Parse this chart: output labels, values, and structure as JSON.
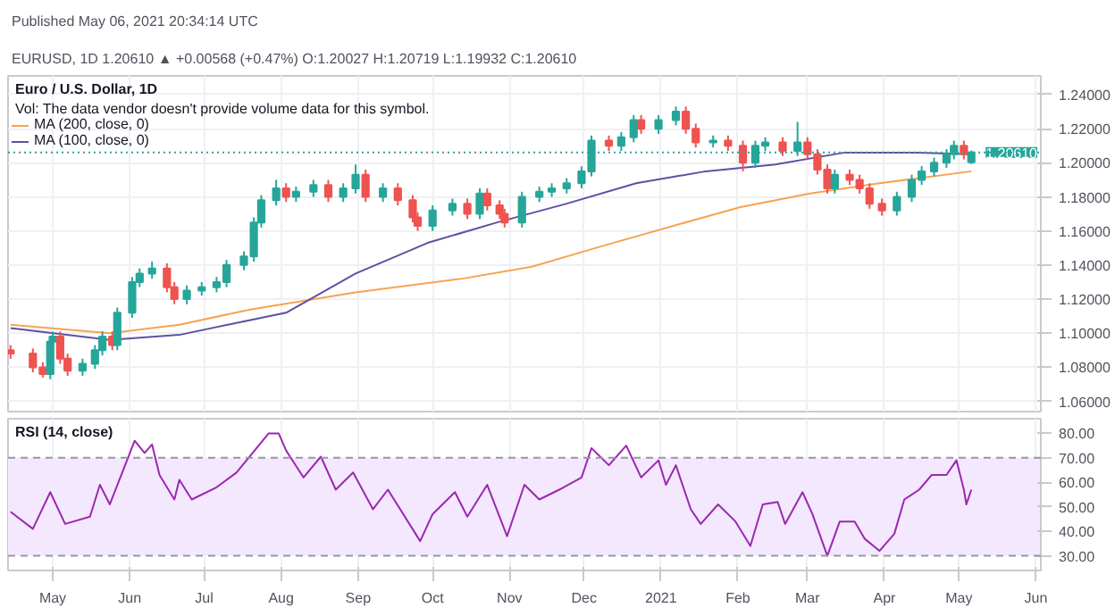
{
  "chart_data": [
    {
      "type": "candlestick",
      "title": "Euro / U.S. Dollar, 1D",
      "subtitle": "Vol: The data vendor doesn't provide volume data for this symbol.",
      "annotations": [
        "Published May 06, 2021 20:34:14 UTC",
        "EURUSD, 1D 1.20610 ▲ +0.00568 (+0.47%) O:1.20027 H:1.20719 L:1.19932 C:1.20610"
      ],
      "x": [
        "2020-04-14",
        "2020-04-23",
        "2020-04-27",
        "2020-04-30",
        "2020-05-01",
        "2020-05-04",
        "2020-05-07",
        "2020-05-13",
        "2020-05-18",
        "2020-05-21",
        "2020-05-25",
        "2020-05-27",
        "2020-06-02",
        "2020-06-05",
        "2020-06-10",
        "2020-06-16",
        "2020-06-19",
        "2020-06-24",
        "2020-06-30",
        "2020-07-06",
        "2020-07-10",
        "2020-07-17",
        "2020-07-21",
        "2020-07-24",
        "2020-07-30",
        "2020-08-03",
        "2020-08-07",
        "2020-08-14",
        "2020-08-20",
        "2020-08-26",
        "2020-08-31",
        "2020-09-04",
        "2020-09-11",
        "2020-09-17",
        "2020-09-23",
        "2020-09-25",
        "2020-10-01",
        "2020-10-09",
        "2020-10-15",
        "2020-10-20",
        "2020-10-23",
        "2020-10-28",
        "2020-10-30",
        "2020-11-06",
        "2020-11-13",
        "2020-11-18",
        "2020-11-24",
        "2020-11-30",
        "2020-12-04",
        "2020-12-11",
        "2020-12-16",
        "2020-12-21",
        "2020-12-24",
        "2020-12-31",
        "2021-01-07",
        "2021-01-11",
        "2021-01-15",
        "2021-01-22",
        "2021-01-28",
        "2021-02-03",
        "2021-02-08",
        "2021-02-12",
        "2021-02-19",
        "2021-02-25",
        "2021-03-01",
        "2021-03-05",
        "2021-03-09",
        "2021-03-12",
        "2021-03-18",
        "2021-03-22",
        "2021-03-26",
        "2021-03-31",
        "2021-04-06",
        "2021-04-12",
        "2021-04-16",
        "2021-04-21",
        "2021-04-26",
        "2021-04-29",
        "2021-05-03",
        "2021-05-06"
      ],
      "ohlc": [
        [
          1.09,
          1.093,
          1.085,
          1.088
        ],
        [
          1.088,
          1.091,
          1.077,
          1.08
        ],
        [
          1.08,
          1.083,
          1.074,
          1.076
        ],
        [
          1.076,
          1.098,
          1.073,
          1.095
        ],
        [
          1.095,
          1.101,
          1.092,
          1.098
        ],
        [
          1.098,
          1.101,
          1.082,
          1.085
        ],
        [
          1.085,
          1.088,
          1.075,
          1.078
        ],
        [
          1.078,
          1.085,
          1.075,
          1.082
        ],
        [
          1.082,
          1.093,
          1.079,
          1.09
        ],
        [
          1.09,
          1.101,
          1.087,
          1.098
        ],
        [
          1.098,
          1.101,
          1.09,
          1.093
        ],
        [
          1.093,
          1.115,
          1.09,
          1.112
        ],
        [
          1.112,
          1.133,
          1.109,
          1.13
        ],
        [
          1.13,
          1.138,
          1.127,
          1.135
        ],
        [
          1.135,
          1.142,
          1.132,
          1.138
        ],
        [
          1.138,
          1.141,
          1.124,
          1.127
        ],
        [
          1.127,
          1.13,
          1.117,
          1.12
        ],
        [
          1.12,
          1.128,
          1.117,
          1.125
        ],
        [
          1.125,
          1.13,
          1.122,
          1.127
        ],
        [
          1.127,
          1.133,
          1.124,
          1.13
        ],
        [
          1.13,
          1.143,
          1.127,
          1.14
        ],
        [
          1.14,
          1.148,
          1.137,
          1.145
        ],
        [
          1.145,
          1.168,
          1.142,
          1.165
        ],
        [
          1.165,
          1.181,
          1.162,
          1.178
        ],
        [
          1.178,
          1.19,
          1.175,
          1.185
        ],
        [
          1.185,
          1.188,
          1.177,
          1.18
        ],
        [
          1.18,
          1.186,
          1.177,
          1.183
        ],
        [
          1.183,
          1.19,
          1.18,
          1.187
        ],
        [
          1.187,
          1.19,
          1.177,
          1.18
        ],
        [
          1.18,
          1.188,
          1.177,
          1.185
        ],
        [
          1.185,
          1.199,
          1.182,
          1.193
        ],
        [
          1.193,
          1.196,
          1.177,
          1.18
        ],
        [
          1.18,
          1.188,
          1.177,
          1.185
        ],
        [
          1.185,
          1.188,
          1.175,
          1.178
        ],
        [
          1.178,
          1.181,
          1.165,
          1.168
        ],
        [
          1.168,
          1.171,
          1.16,
          1.163
        ],
        [
          1.163,
          1.175,
          1.16,
          1.172
        ],
        [
          1.172,
          1.179,
          1.169,
          1.176
        ],
        [
          1.176,
          1.179,
          1.167,
          1.17
        ],
        [
          1.17,
          1.185,
          1.167,
          1.182
        ],
        [
          1.182,
          1.185,
          1.172,
          1.175
        ],
        [
          1.175,
          1.178,
          1.167,
          1.17
        ],
        [
          1.17,
          1.173,
          1.162,
          1.165
        ],
        [
          1.165,
          1.183,
          1.162,
          1.18
        ],
        [
          1.18,
          1.186,
          1.177,
          1.183
        ],
        [
          1.183,
          1.188,
          1.18,
          1.185
        ],
        [
          1.185,
          1.191,
          1.182,
          1.188
        ],
        [
          1.188,
          1.198,
          1.185,
          1.195
        ],
        [
          1.195,
          1.216,
          1.192,
          1.213
        ],
        [
          1.213,
          1.216,
          1.207,
          1.21
        ],
        [
          1.21,
          1.218,
          1.207,
          1.215
        ],
        [
          1.215,
          1.228,
          1.212,
          1.225
        ],
        [
          1.225,
          1.228,
          1.217,
          1.22
        ],
        [
          1.22,
          1.228,
          1.217,
          1.225
        ],
        [
          1.225,
          1.233,
          1.222,
          1.23
        ],
        [
          1.23,
          1.233,
          1.217,
          1.22
        ],
        [
          1.22,
          1.223,
          1.209,
          1.212
        ],
        [
          1.212,
          1.216,
          1.209,
          1.213
        ],
        [
          1.213,
          1.216,
          1.207,
          1.21
        ],
        [
          1.21,
          1.213,
          1.195,
          1.2
        ],
        [
          1.2,
          1.213,
          1.197,
          1.21
        ],
        [
          1.21,
          1.215,
          1.207,
          1.212
        ],
        [
          1.212,
          1.215,
          1.204,
          1.207
        ],
        [
          1.207,
          1.224,
          1.204,
          1.212
        ],
        [
          1.212,
          1.215,
          1.202,
          1.205
        ],
        [
          1.205,
          1.208,
          1.193,
          1.196
        ],
        [
          1.196,
          1.199,
          1.182,
          1.185
        ],
        [
          1.185,
          1.196,
          1.182,
          1.193
        ],
        [
          1.193,
          1.196,
          1.187,
          1.19
        ],
        [
          1.19,
          1.193,
          1.182,
          1.185
        ],
        [
          1.185,
          1.188,
          1.173,
          1.176
        ],
        [
          1.176,
          1.179,
          1.169,
          1.172
        ],
        [
          1.172,
          1.183,
          1.169,
          1.18
        ],
        [
          1.18,
          1.193,
          1.177,
          1.19
        ],
        [
          1.19,
          1.198,
          1.187,
          1.195
        ],
        [
          1.195,
          1.203,
          1.192,
          1.2
        ],
        [
          1.2,
          1.208,
          1.197,
          1.205
        ],
        [
          1.205,
          1.213,
          1.202,
          1.21
        ],
        [
          1.21,
          1.213,
          1.202,
          1.205
        ],
        [
          1.20027,
          1.20719,
          1.19932,
          1.2061
        ]
      ],
      "colors": [
        "#ef5350",
        "#ef5350",
        "#ef5350",
        "#26a69a",
        "#26a69a",
        "#ef5350",
        "#ef5350",
        "#26a69a",
        "#26a69a",
        "#26a69a",
        "#ef5350",
        "#26a69a",
        "#26a69a",
        "#26a69a",
        "#26a69a",
        "#ef5350",
        "#ef5350",
        "#26a69a",
        "#26a69a",
        "#26a69a",
        "#26a69a",
        "#26a69a",
        "#26a69a",
        "#26a69a",
        "#26a69a",
        "#ef5350",
        "#26a69a",
        "#26a69a",
        "#ef5350",
        "#26a69a",
        "#26a69a",
        "#ef5350",
        "#26a69a",
        "#ef5350",
        "#ef5350",
        "#ef5350",
        "#26a69a",
        "#26a69a",
        "#ef5350",
        "#26a69a",
        "#ef5350",
        "#ef5350",
        "#ef5350",
        "#26a69a",
        "#26a69a",
        "#26a69a",
        "#26a69a",
        "#26a69a",
        "#26a69a",
        "#ef5350",
        "#26a69a",
        "#26a69a",
        "#ef5350",
        "#26a69a",
        "#26a69a",
        "#ef5350",
        "#ef5350",
        "#26a69a",
        "#ef5350",
        "#ef5350",
        "#26a69a",
        "#26a69a",
        "#ef5350",
        "#26a69a",
        "#ef5350",
        "#ef5350",
        "#ef5350",
        "#26a69a",
        "#ef5350",
        "#ef5350",
        "#ef5350",
        "#ef5350",
        "#26a69a",
        "#26a69a",
        "#26a69a",
        "#26a69a",
        "#26a69a",
        "#26a69a",
        "#ef5350",
        "#26a69a"
      ],
      "series": [
        {
          "name": "MA (200, close, 0)",
          "type": "line",
          "color": "#f7a350",
          "x": [
            "2020-04-14",
            "2020-05-24",
            "2020-06-21",
            "2020-07-20",
            "2020-08-31",
            "2020-10-13",
            "2020-11-10",
            "2020-12-08",
            "2021-01-06",
            "2021-02-02",
            "2021-03-02",
            "2021-03-30",
            "2021-05-06"
          ],
          "values": [
            1.105,
            1.1,
            1.105,
            1.114,
            1.124,
            1.132,
            1.139,
            1.151,
            1.163,
            1.174,
            1.182,
            1.188,
            1.195
          ]
        },
        {
          "name": "MA (100, close, 0)",
          "type": "line",
          "color": "#5e4fa2",
          "x": [
            "2020-04-14",
            "2020-05-24",
            "2020-06-21",
            "2020-07-14",
            "2020-08-03",
            "2020-08-31",
            "2020-09-29",
            "2020-10-27",
            "2020-11-24",
            "2020-12-22",
            "2021-01-19",
            "2021-02-16",
            "2021-03-16",
            "2021-04-14",
            "2021-05-06"
          ],
          "values": [
            1.103,
            1.096,
            1.099,
            1.106,
            1.112,
            1.135,
            1.153,
            1.165,
            1.176,
            1.188,
            1.195,
            1.199,
            1.206,
            1.206,
            1.205
          ]
        }
      ],
      "ref_lines": [
        {
          "axis": "y",
          "value": 1.2061,
          "label": "1.20610",
          "color": "#26a69a",
          "line_style": "dotted"
        }
      ],
      "xlim": [
        "2020-04-13",
        "2021-06-03"
      ],
      "xticks": [
        {
          "value": "2020-05-01",
          "label": null
        },
        {
          "value": "2020-06-01",
          "label": null
        },
        {
          "value": "2020-07-01",
          "label": null
        },
        {
          "value": "2020-08-01",
          "label": null
        },
        {
          "value": "2020-09-01",
          "label": null
        },
        {
          "value": "2020-10-01",
          "label": null
        },
        {
          "value": "2020-11-01",
          "label": null
        },
        {
          "value": "2020-12-01",
          "label": null
        },
        {
          "value": "2021-01-01",
          "label": null
        },
        {
          "value": "2021-02-01",
          "label": null
        },
        {
          "value": "2021-03-01",
          "label": null
        },
        {
          "value": "2021-04-01",
          "label": null
        },
        {
          "value": "2021-05-01",
          "label": null
        },
        {
          "value": "2021-06-01",
          "label": null
        }
      ],
      "ylim": [
        1.054,
        1.251
      ],
      "yticks": [
        {
          "value": 1.06,
          "label": "1.06000"
        },
        {
          "value": 1.08,
          "label": "1.08000"
        },
        {
          "value": 1.1,
          "label": "1.10000"
        },
        {
          "value": 1.12,
          "label": "1.12000"
        },
        {
          "value": 1.14,
          "label": "1.14000"
        },
        {
          "value": 1.16,
          "label": "1.16000"
        },
        {
          "value": 1.18,
          "label": "1.18000"
        },
        {
          "value": 1.2,
          "label": "1.20000"
        },
        {
          "value": 1.22,
          "label": "1.22000"
        },
        {
          "value": 1.24,
          "label": "1.24000"
        }
      ],
      "grid": true,
      "legend": "top left",
      "tick_labels": "y"
    },
    {
      "type": "line",
      "title": "RSI (14, close)",
      "series": [
        {
          "color": "#9c27b0",
          "x": [
            "2020-04-14",
            "2020-04-23",
            "2020-04-30",
            "2020-05-06",
            "2020-05-16",
            "2020-05-20",
            "2020-05-24",
            "2020-06-03",
            "2020-06-07",
            "2020-06-10",
            "2020-06-13",
            "2020-06-19",
            "2020-06-21",
            "2020-06-26",
            "2020-07-06",
            "2020-07-14",
            "2020-07-27",
            "2020-07-31",
            "2020-08-03",
            "2020-08-10",
            "2020-08-17",
            "2020-08-23",
            "2020-08-30",
            "2020-09-07",
            "2020-09-13",
            "2020-09-26",
            "2020-10-01",
            "2020-10-10",
            "2020-10-15",
            "2020-10-23",
            "2020-10-31",
            "2020-11-07",
            "2020-11-13",
            "2020-11-21",
            "2020-11-30",
            "2020-12-04",
            "2020-12-11",
            "2020-12-18",
            "2020-12-24",
            "2020-12-31",
            "2021-01-03",
            "2021-01-07",
            "2021-01-13",
            "2021-01-17",
            "2021-01-24",
            "2021-01-31",
            "2021-02-06",
            "2021-02-11",
            "2021-02-17",
            "2021-02-20",
            "2021-02-27",
            "2021-03-03",
            "2021-03-09",
            "2021-03-14",
            "2021-03-20",
            "2021-03-24",
            "2021-03-30",
            "2021-04-05",
            "2021-04-09",
            "2021-04-15",
            "2021-04-20",
            "2021-04-26",
            "2021-04-30",
            "2021-05-03",
            "2021-05-04",
            "2021-05-06"
          ],
          "values": [
            48,
            41,
            56,
            43,
            46,
            59,
            51,
            77,
            72,
            75.5,
            63,
            53,
            61,
            53,
            58,
            64,
            80,
            80,
            73,
            62,
            70.5,
            57,
            64,
            49,
            57,
            36,
            47,
            56,
            46,
            59,
            38,
            59,
            53,
            57,
            62,
            74,
            67,
            75,
            62,
            69,
            59,
            67,
            49,
            43,
            51,
            44,
            34,
            51,
            52,
            43,
            56,
            47,
            30,
            44,
            44,
            37,
            32,
            39,
            53,
            57,
            63,
            63,
            69,
            57,
            51,
            57
          ]
        }
      ],
      "bands": [
        {
          "axis": "y",
          "from": 30,
          "to": 70,
          "color": "#f3e8fd"
        }
      ],
      "ref_lines": [
        {
          "axis": "y",
          "value": 70,
          "color": "#9598a1",
          "line_style": "dashed"
        },
        {
          "axis": "y",
          "value": 30,
          "color": "#9598a1",
          "line_style": "dashed"
        }
      ],
      "xlim": [
        "2020-04-13",
        "2021-06-03"
      ],
      "xticks": [
        {
          "value": "2020-05-01",
          "label": "May"
        },
        {
          "value": "2020-06-01",
          "label": "Jun"
        },
        {
          "value": "2020-07-01",
          "label": "Jul"
        },
        {
          "value": "2020-08-01",
          "label": "Aug"
        },
        {
          "value": "2020-09-01",
          "label": "Sep"
        },
        {
          "value": "2020-10-01",
          "label": "Oct"
        },
        {
          "value": "2020-11-01",
          "label": "Nov"
        },
        {
          "value": "2020-12-01",
          "label": "Dec"
        },
        {
          "value": "2021-01-01",
          "label": "2021"
        },
        {
          "value": "2021-02-01",
          "label": "Feb"
        },
        {
          "value": "2021-03-01",
          "label": "Mar"
        },
        {
          "value": "2021-04-01",
          "label": "Apr"
        },
        {
          "value": "2021-05-01",
          "label": "May"
        },
        {
          "value": "2021-06-01",
          "label": "Jun"
        }
      ],
      "ylim": [
        24,
        86
      ],
      "yticks": [
        {
          "value": 30,
          "label": "30.00"
        },
        {
          "value": 40,
          "label": "40.00"
        },
        {
          "value": 50,
          "label": "50.00"
        },
        {
          "value": 60,
          "label": "60.00"
        },
        {
          "value": 70,
          "label": "70.00"
        },
        {
          "value": 80,
          "label": "80.00"
        }
      ],
      "grid": "x"
    }
  ]
}
